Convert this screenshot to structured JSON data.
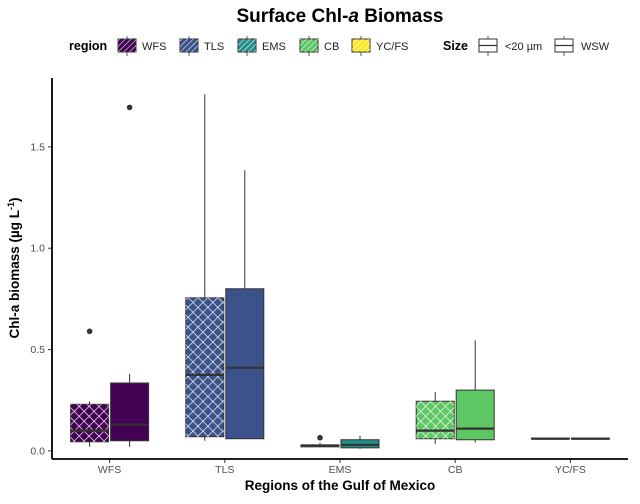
{
  "chart_data": {
    "type": "boxplot",
    "title_main": "Surface Chl-",
    "title_italic": "a",
    "title_tail": " Biomass",
    "xlabel": "Regions of the Gulf of Mexico",
    "ylabel_main": "Chl-a biomass (µg L",
    "ylabel_sup": "-1",
    "ylabel_close": ")",
    "ylim": [
      -0.04,
      1.84
    ],
    "yticks": [
      0.0,
      0.5,
      1.0,
      1.5
    ],
    "ytick_labels": [
      "0.0",
      "0.5",
      "1.0",
      "1.5"
    ],
    "categories": [
      "WFS",
      "TLS",
      "EMS",
      "CB",
      "YC/FS"
    ],
    "legend_region": {
      "title": "region",
      "entries": [
        {
          "label": "WFS",
          "color": "#440154"
        },
        {
          "label": "TLS",
          "color": "#3b528b"
        },
        {
          "label": "EMS",
          "color": "#21908c"
        },
        {
          "label": "CB",
          "color": "#5dc863"
        },
        {
          "label": "YC/FS",
          "color": "#fde725"
        }
      ]
    },
    "legend_size": {
      "title": "Size",
      "entries": [
        {
          "label": "<20 µm",
          "pattern": "crosshatch"
        },
        {
          "label": "WSW",
          "pattern": "none"
        }
      ]
    },
    "series": [
      {
        "name": "<20 µm",
        "pattern": "crosshatch",
        "boxes": [
          {
            "category": "WFS",
            "whisker_low": 0.02,
            "q1": 0.045,
            "median": 0.1,
            "q3": 0.23,
            "whisker_high": 0.245,
            "outliers": [
              0.59
            ]
          },
          {
            "category": "TLS",
            "whisker_low": 0.05,
            "q1": 0.07,
            "median": 0.375,
            "q3": 0.755,
            "whisker_high": 1.76,
            "outliers": []
          },
          {
            "category": "EMS",
            "whisker_low": 0.02,
            "q1": 0.02,
            "median": 0.025,
            "q3": 0.03,
            "whisker_high": 0.04,
            "outliers": [
              0.065
            ]
          },
          {
            "category": "CB",
            "whisker_low": 0.035,
            "q1": 0.06,
            "median": 0.1,
            "q3": 0.245,
            "whisker_high": 0.29,
            "outliers": []
          },
          {
            "category": "YC/FS",
            "whisker_low": 0.06,
            "q1": 0.06,
            "median": 0.06,
            "q3": 0.063,
            "whisker_high": 0.063,
            "outliers": []
          }
        ]
      },
      {
        "name": "WSW",
        "pattern": "none",
        "boxes": [
          {
            "category": "WFS",
            "whisker_low": 0.02,
            "q1": 0.05,
            "median": 0.13,
            "q3": 0.335,
            "whisker_high": 0.38,
            "outliers": [
              1.695
            ]
          },
          {
            "category": "TLS",
            "whisker_low": 0.06,
            "q1": 0.06,
            "median": 0.41,
            "q3": 0.8,
            "whisker_high": 1.385,
            "outliers": []
          },
          {
            "category": "EMS",
            "whisker_low": 0.01,
            "q1": 0.015,
            "median": 0.03,
            "q3": 0.055,
            "whisker_high": 0.075,
            "outliers": []
          },
          {
            "category": "CB",
            "whisker_low": 0.04,
            "q1": 0.055,
            "median": 0.11,
            "q3": 0.3,
            "whisker_high": 0.545,
            "outliers": []
          },
          {
            "category": "YC/FS",
            "whisker_low": 0.06,
            "q1": 0.06,
            "median": 0.06,
            "q3": 0.063,
            "whisker_high": 0.063,
            "outliers": []
          }
        ]
      }
    ]
  }
}
